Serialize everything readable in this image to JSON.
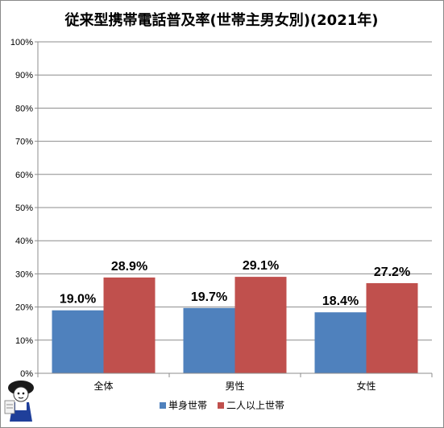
{
  "chart_data": {
    "type": "bar",
    "title": "従来型携帯電話普及率(世帯主男女別)(2021年)",
    "categories": [
      "全体",
      "男性",
      "女性"
    ],
    "series": [
      {
        "name": "単身世帯",
        "values": [
          19.0,
          19.7,
          18.4
        ],
        "labels": [
          "19.0%",
          "19.7%",
          "18.4%"
        ],
        "color": "#4f81bd"
      },
      {
        "name": "二人以上世帯",
        "values": [
          28.9,
          29.1,
          27.2
        ],
        "labels": [
          "28.9%",
          "29.1%",
          "27.2%"
        ],
        "color": "#c0504d"
      }
    ],
    "ylim": [
      0,
      100
    ],
    "yticks": [
      "0%",
      "10%",
      "20%",
      "30%",
      "40%",
      "50%",
      "60%",
      "70%",
      "80%",
      "90%",
      "100%"
    ],
    "grid": true,
    "legend": "bottom"
  },
  "icons": {
    "mascot": "mascot-icon"
  }
}
